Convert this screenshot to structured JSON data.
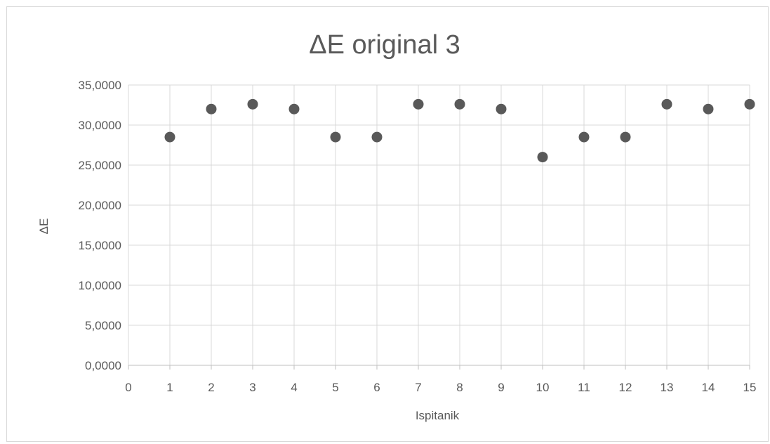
{
  "chart_data": {
    "type": "scatter",
    "title": "ΔE original 3",
    "xlabel": "Ispitanik",
    "ylabel": "ΔE",
    "xlim": [
      0,
      15
    ],
    "ylim": [
      0,
      35
    ],
    "x_ticks": [
      0,
      1,
      2,
      3,
      4,
      5,
      6,
      7,
      8,
      9,
      10,
      11,
      12,
      13,
      14,
      15
    ],
    "y_ticks": [
      0,
      5,
      10,
      15,
      20,
      25,
      30,
      35
    ],
    "y_tick_labels": [
      "0,0000",
      "5,0000",
      "10,0000",
      "15,0000",
      "20,0000",
      "25,0000",
      "30,0000",
      "35,0000"
    ],
    "grid": "vertical and horizontal",
    "point_color": "#595959",
    "grid_color": "#d9d9d9",
    "series": [
      {
        "x": [
          1,
          2,
          3,
          4,
          5,
          6,
          7,
          8,
          9,
          10,
          11,
          12,
          13,
          14,
          15
        ],
        "y": [
          28.5,
          32.0,
          32.6,
          32.0,
          28.5,
          28.5,
          32.6,
          32.6,
          32.0,
          26.0,
          28.5,
          28.5,
          32.6,
          32.0,
          32.6
        ]
      }
    ]
  }
}
